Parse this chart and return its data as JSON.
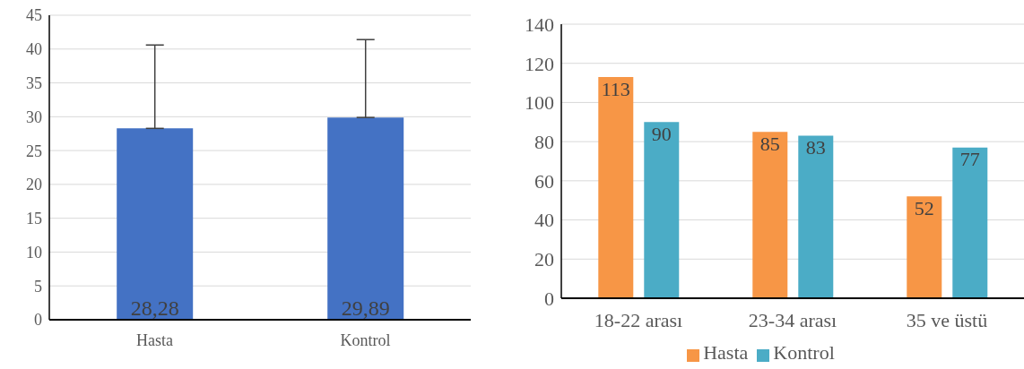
{
  "chart_data": [
    {
      "type": "bar",
      "categories": [
        "Hasta",
        "Kontrol"
      ],
      "values": [
        28.28,
        29.89
      ],
      "color": "#4472c4",
      "errors": [
        [
          28.28,
          40.6
        ],
        [
          29.89,
          41.4
        ]
      ],
      "value_labels": [
        "28,28",
        "29,89"
      ],
      "ylim": [
        0,
        45
      ],
      "yticks": [
        0,
        5,
        10,
        15,
        20,
        25,
        30,
        35,
        40,
        45
      ],
      "grid": "y",
      "legend": false
    },
    {
      "type": "bar",
      "categories": [
        "18-22 arası",
        "23-34 arası",
        "35 ve üstü"
      ],
      "series": [
        {
          "name": "Hasta",
          "color": "#f79646",
          "values": [
            113,
            85,
            52
          ]
        },
        {
          "name": "Kontrol",
          "color": "#4bacc6",
          "values": [
            90,
            83,
            77
          ]
        }
      ],
      "ylim": [
        0,
        140
      ],
      "yticks": [
        0,
        20,
        40,
        60,
        80,
        100,
        120,
        140
      ],
      "grid": "y",
      "data_labels": true,
      "legend": "bottom"
    }
  ]
}
